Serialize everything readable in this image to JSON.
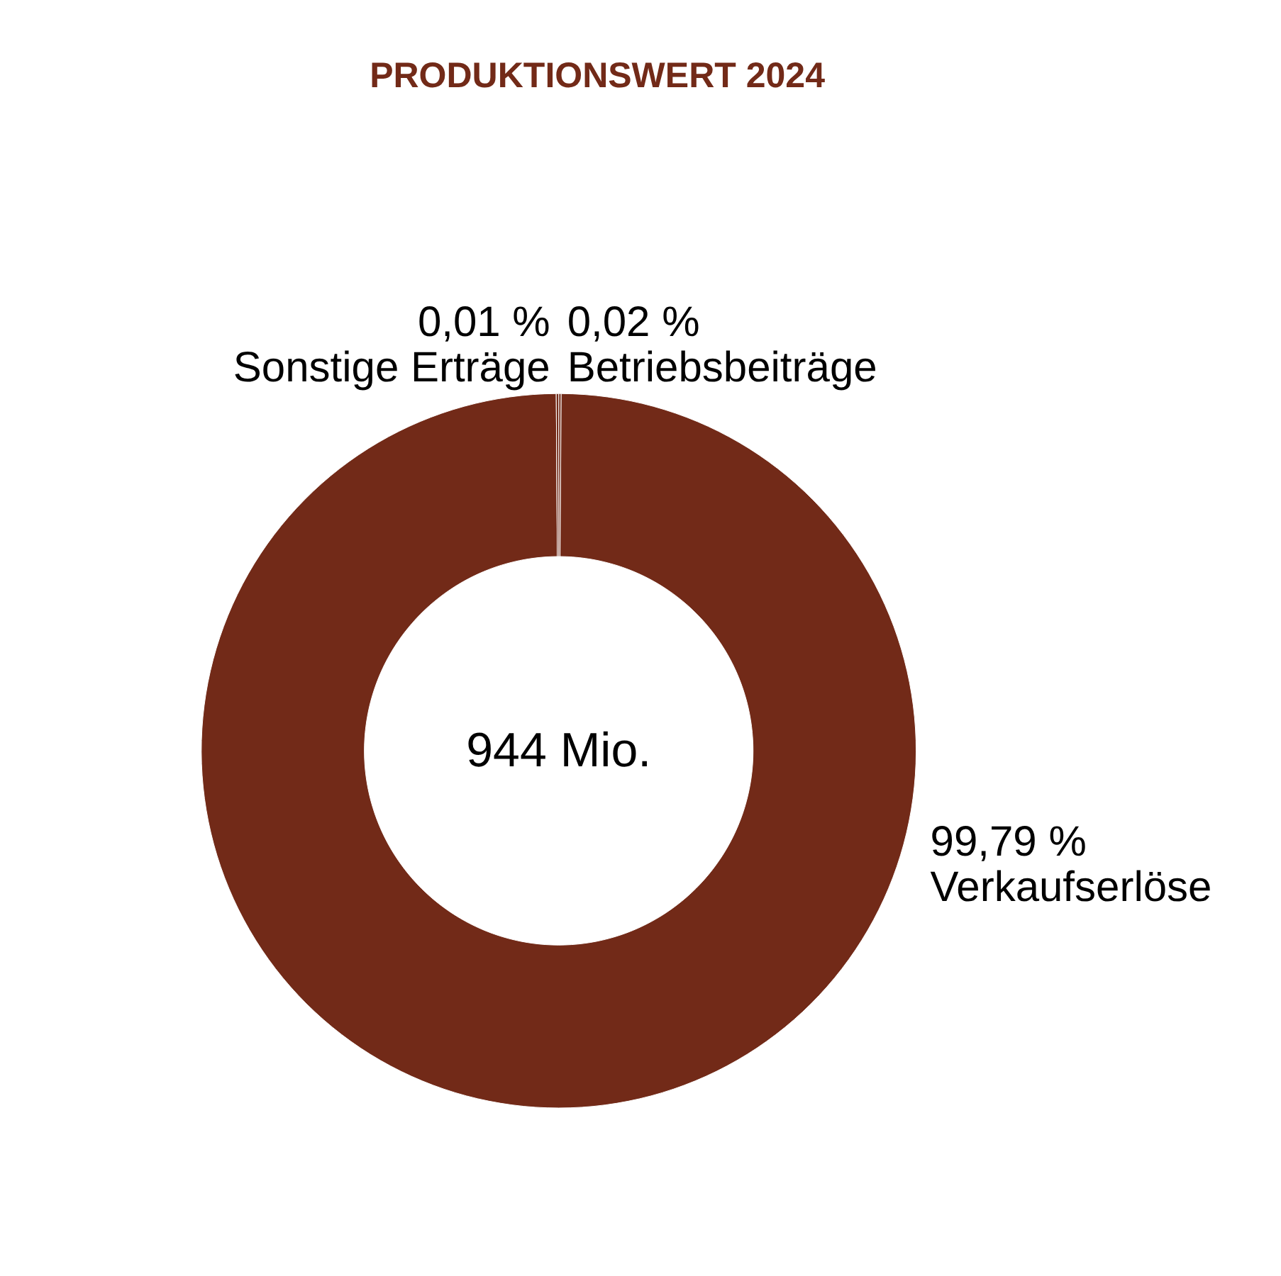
{
  "chart_data": {
    "type": "donut",
    "title": "PRODUKTIONSWERT 2024",
    "categories": [
      "Betriebsbeiträge",
      "Verkaufserlöse",
      "Sonstige Erträge"
    ],
    "values": [
      0.02,
      99.79,
      0.01
    ],
    "colors": [
      "#722a18",
      "#722a18",
      "#722a18"
    ],
    "value_labels": [
      "0,02 %",
      "99,79 %",
      "0,01 %"
    ],
    "annotations": [
      "944 Mio."
    ],
    "legend": false
  }
}
